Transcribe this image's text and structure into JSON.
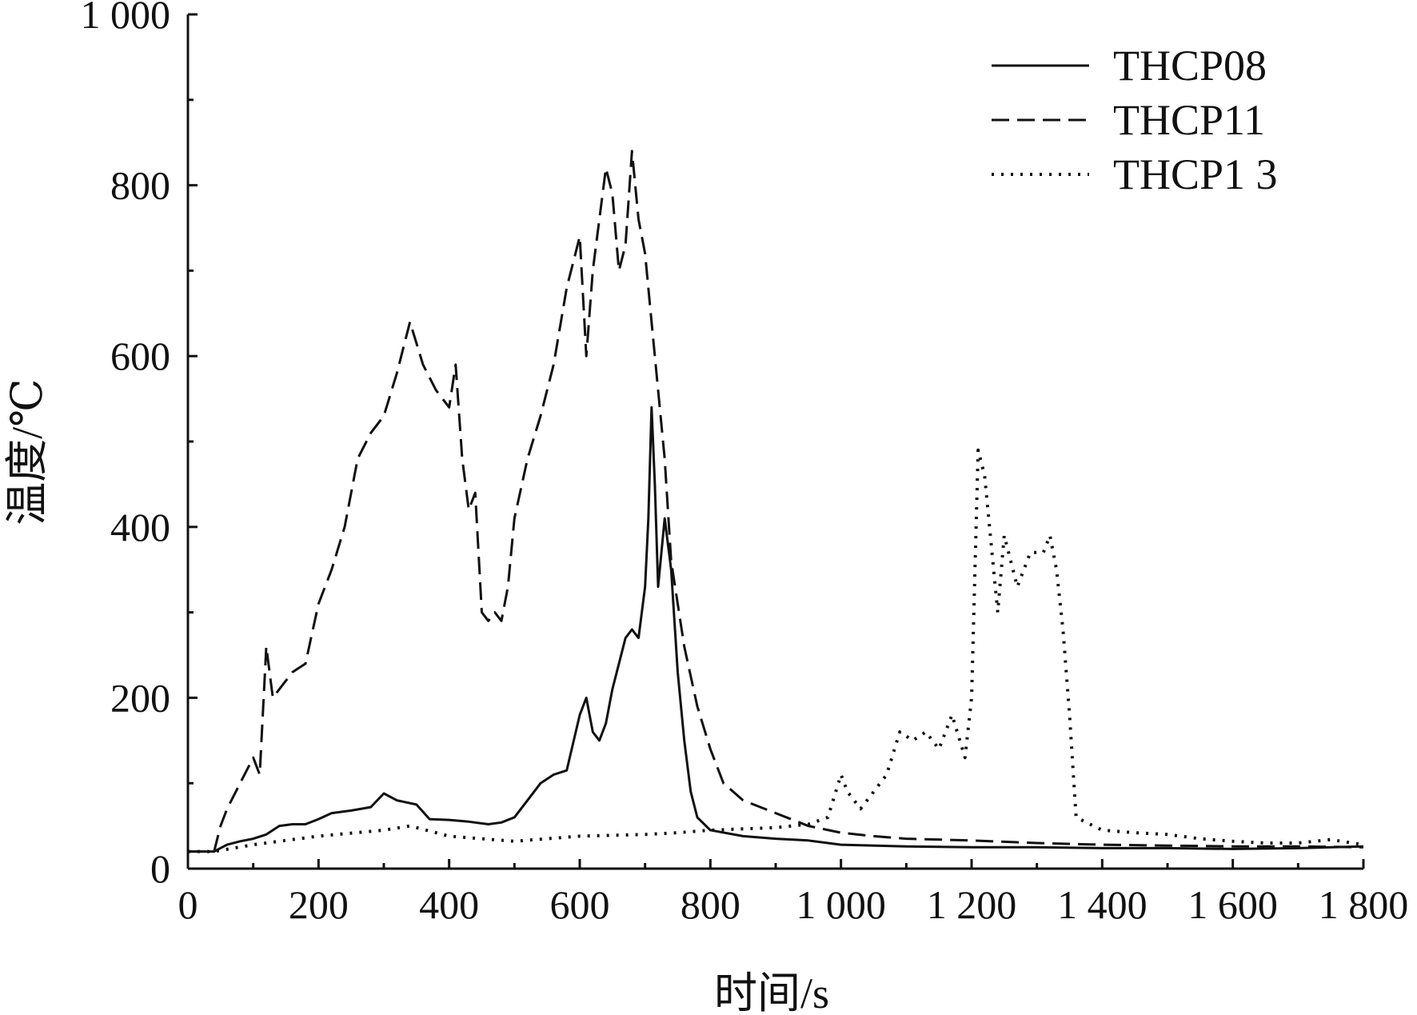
{
  "chart_data": {
    "type": "line",
    "xlabel": "时间/s",
    "ylabel": "温度/℃",
    "xlim": [
      0,
      1800
    ],
    "ylim": [
      0,
      1000
    ],
    "x_ticks": [
      0,
      200,
      400,
      600,
      800,
      1000,
      1200,
      1400,
      1600,
      1800
    ],
    "x_tick_labels": [
      "0",
      "200",
      "400",
      "600",
      "800",
      "1 000",
      "1 200",
      "1 400",
      "1 600",
      "1 800"
    ],
    "y_ticks": [
      0,
      200,
      400,
      600,
      800,
      1000
    ],
    "y_tick_labels": [
      "0",
      "200",
      "400",
      "600",
      "800",
      "1 000"
    ],
    "legend_position": "top-right",
    "grid": false,
    "series": [
      {
        "name": "THCP08",
        "style": "solid",
        "x": [
          0,
          40,
          60,
          80,
          100,
          120,
          140,
          160,
          180,
          200,
          220,
          250,
          280,
          300,
          320,
          350,
          370,
          400,
          430,
          460,
          480,
          500,
          520,
          540,
          560,
          580,
          600,
          610,
          620,
          630,
          640,
          650,
          660,
          670,
          680,
          690,
          700,
          705,
          710,
          715,
          720,
          730,
          740,
          750,
          760,
          770,
          780,
          800,
          850,
          900,
          950,
          1000,
          1100,
          1200,
          1300,
          1400,
          1500,
          1600,
          1700,
          1800
        ],
        "y": [
          20,
          20,
          28,
          32,
          35,
          40,
          50,
          52,
          52,
          58,
          65,
          68,
          72,
          88,
          80,
          75,
          58,
          57,
          55,
          52,
          54,
          60,
          80,
          100,
          110,
          115,
          180,
          200,
          160,
          150,
          170,
          210,
          240,
          270,
          280,
          270,
          330,
          410,
          540,
          450,
          330,
          410,
          350,
          230,
          150,
          90,
          60,
          45,
          38,
          35,
          33,
          28,
          26,
          25,
          25,
          24,
          24,
          23,
          24,
          26
        ]
      },
      {
        "name": "THCP11",
        "style": "dashed",
        "x": [
          0,
          40,
          50,
          60,
          80,
          100,
          110,
          120,
          130,
          140,
          160,
          180,
          200,
          220,
          240,
          260,
          280,
          300,
          320,
          340,
          360,
          380,
          400,
          410,
          420,
          430,
          440,
          450,
          460,
          470,
          480,
          490,
          500,
          520,
          540,
          560,
          580,
          600,
          610,
          620,
          630,
          640,
          650,
          660,
          670,
          680,
          690,
          700,
          710,
          720,
          730,
          740,
          760,
          780,
          800,
          820,
          850,
          900,
          950,
          1000,
          1050,
          1100,
          1200,
          1300,
          1400,
          1500,
          1600,
          1700,
          1800
        ],
        "y": [
          20,
          20,
          50,
          70,
          100,
          130,
          110,
          260,
          200,
          210,
          230,
          240,
          310,
          350,
          400,
          480,
          510,
          530,
          580,
          640,
          590,
          560,
          540,
          590,
          480,
          420,
          440,
          300,
          290,
          300,
          290,
          330,
          410,
          480,
          530,
          590,
          680,
          740,
          600,
          700,
          760,
          820,
          790,
          700,
          730,
          840,
          760,
          720,
          640,
          560,
          480,
          360,
          260,
          190,
          140,
          100,
          80,
          65,
          50,
          42,
          38,
          35,
          33,
          30,
          28,
          27,
          26,
          26,
          25
        ]
      },
      {
        "name": "THCP1 3",
        "style": "dotted",
        "x": [
          0,
          40,
          100,
          200,
          300,
          340,
          400,
          500,
          600,
          700,
          750,
          800,
          900,
          950,
          980,
          1000,
          1010,
          1030,
          1050,
          1070,
          1090,
          1110,
          1130,
          1150,
          1170,
          1190,
          1200,
          1210,
          1220,
          1230,
          1240,
          1250,
          1270,
          1290,
          1310,
          1320,
          1330,
          1340,
          1350,
          1360,
          1400,
          1450,
          1500,
          1550,
          1600,
          1650,
          1700,
          1750,
          1800
        ],
        "y": [
          20,
          20,
          28,
          38,
          45,
          50,
          38,
          32,
          38,
          40,
          42,
          45,
          48,
          52,
          60,
          110,
          90,
          70,
          90,
          110,
          160,
          150,
          160,
          140,
          180,
          130,
          200,
          490,
          460,
          380,
          300,
          390,
          330,
          370,
          370,
          390,
          350,
          280,
          180,
          60,
          45,
          42,
          40,
          35,
          32,
          30,
          30,
          34,
          28
        ]
      }
    ]
  }
}
